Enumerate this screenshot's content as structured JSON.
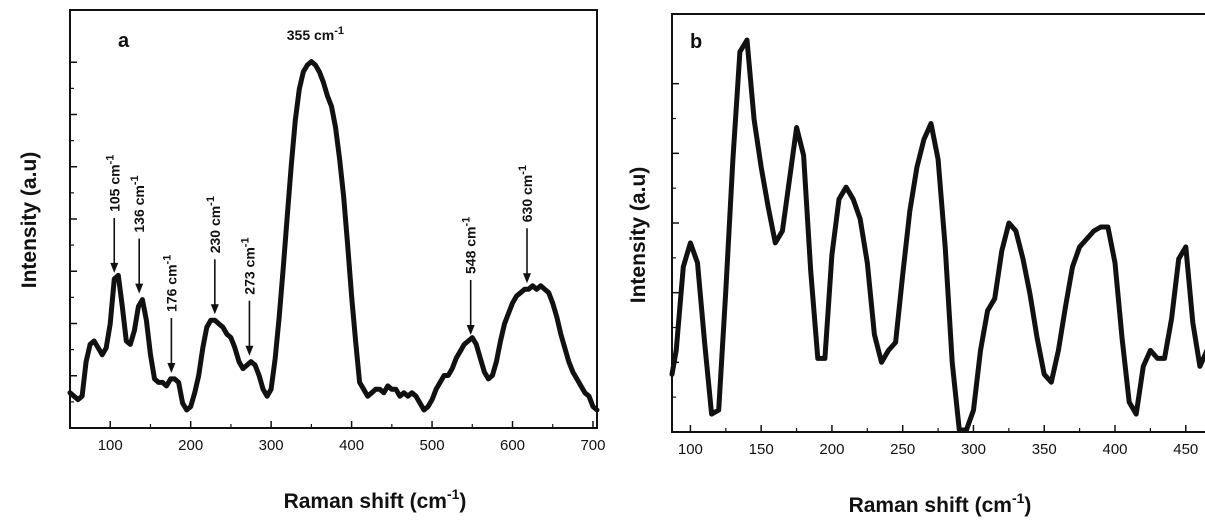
{
  "colors": {
    "line": "#111111",
    "background": "#ffffff"
  },
  "chart_data": [
    {
      "type": "line",
      "panel_label": "a",
      "xlabel": "Raman shift (cm",
      "xlabel_sup": "-1",
      "xlabel_close": ")",
      "ylabel": "Intensity (a.u)",
      "xlim": [
        50,
        705
      ],
      "ylim": [
        0,
        1
      ],
      "xticks": [
        100,
        200,
        300,
        400,
        500,
        600,
        700
      ],
      "yticks_count": 7,
      "grid": false,
      "series": [
        {
          "x": [
            50,
            55,
            60,
            65,
            70,
            75,
            80,
            85,
            90,
            95,
            100,
            105,
            110,
            115,
            120,
            125,
            130,
            135,
            140,
            145,
            150,
            155,
            160,
            165,
            170,
            175,
            180,
            185,
            190,
            195,
            200,
            205,
            210,
            215,
            220,
            225,
            230,
            235,
            240,
            245,
            250,
            255,
            260,
            265,
            270,
            275,
            280,
            285,
            290,
            295,
            300,
            305,
            310,
            315,
            320,
            325,
            330,
            335,
            340,
            345,
            350,
            355,
            360,
            365,
            370,
            375,
            380,
            385,
            390,
            395,
            400,
            405,
            410,
            415,
            420,
            425,
            430,
            435,
            440,
            445,
            450,
            455,
            460,
            465,
            470,
            475,
            480,
            485,
            490,
            495,
            500,
            505,
            510,
            515,
            520,
            525,
            530,
            535,
            540,
            545,
            550,
            555,
            560,
            565,
            570,
            575,
            580,
            585,
            590,
            595,
            600,
            605,
            610,
            615,
            620,
            625,
            630,
            635,
            640,
            645,
            650,
            655,
            660,
            665,
            670,
            675,
            680,
            685,
            690,
            695,
            700,
            705
          ],
          "y": [
            0.05,
            0.04,
            0.03,
            0.04,
            0.14,
            0.19,
            0.2,
            0.18,
            0.16,
            0.18,
            0.25,
            0.38,
            0.39,
            0.3,
            0.2,
            0.19,
            0.23,
            0.3,
            0.32,
            0.26,
            0.16,
            0.09,
            0.08,
            0.08,
            0.07,
            0.09,
            0.09,
            0.08,
            0.02,
            0.0,
            0.01,
            0.05,
            0.1,
            0.18,
            0.24,
            0.26,
            0.26,
            0.25,
            0.24,
            0.22,
            0.21,
            0.18,
            0.14,
            0.12,
            0.13,
            0.14,
            0.13,
            0.1,
            0.06,
            0.04,
            0.06,
            0.15,
            0.27,
            0.41,
            0.56,
            0.71,
            0.84,
            0.93,
            0.98,
            1.0,
            1.01,
            1.0,
            0.98,
            0.95,
            0.91,
            0.88,
            0.82,
            0.73,
            0.62,
            0.48,
            0.33,
            0.2,
            0.08,
            0.06,
            0.04,
            0.05,
            0.06,
            0.06,
            0.05,
            0.07,
            0.06,
            0.06,
            0.04,
            0.05,
            0.04,
            0.05,
            0.04,
            0.02,
            0.0,
            0.01,
            0.03,
            0.06,
            0.08,
            0.1,
            0.1,
            0.12,
            0.15,
            0.17,
            0.19,
            0.2,
            0.21,
            0.19,
            0.15,
            0.11,
            0.09,
            0.1,
            0.14,
            0.2,
            0.25,
            0.28,
            0.31,
            0.33,
            0.34,
            0.35,
            0.35,
            0.36,
            0.35,
            0.36,
            0.35,
            0.34,
            0.31,
            0.27,
            0.22,
            0.18,
            0.14,
            0.11,
            0.09,
            0.07,
            0.05,
            0.04,
            0.01,
            0.0
          ]
        }
      ],
      "annotations": [
        {
          "text": "355 cm",
          "sup": "-1",
          "x": 355,
          "position": "top"
        },
        {
          "text": "105 cm",
          "sup": "-1",
          "x": 105,
          "y": 0.38
        },
        {
          "text": "136 cm",
          "sup": "-1",
          "x": 136,
          "y": 0.32
        },
        {
          "text": "176 cm",
          "sup": "-1",
          "x": 176,
          "y": 0.09
        },
        {
          "text": "230 cm",
          "sup": "-1",
          "x": 230,
          "y": 0.26
        },
        {
          "text": "273 cm",
          "sup": "-1",
          "x": 273,
          "y": 0.14
        },
        {
          "text": "548 cm",
          "sup": "-1",
          "x": 548,
          "y": 0.2
        },
        {
          "text": "630 cm",
          "sup": "-1",
          "x": 618,
          "y": 0.35
        }
      ]
    },
    {
      "type": "line",
      "panel_label": "b",
      "xlabel": "Raman shift (cm",
      "xlabel_sup": "-1",
      "xlabel_close": ")",
      "ylabel": "Intensity (a.u)",
      "xlim": [
        87,
        465
      ],
      "ylim": [
        0,
        1
      ],
      "xticks": [
        100,
        150,
        200,
        250,
        300,
        350,
        400,
        450
      ],
      "yticks_count": 5,
      "grid": false,
      "series": [
        {
          "x": [
            87,
            90,
            95,
            100,
            105,
            110,
            115,
            120,
            125,
            130,
            135,
            140,
            145,
            150,
            155,
            160,
            165,
            170,
            175,
            180,
            185,
            190,
            195,
            200,
            205,
            210,
            215,
            220,
            225,
            230,
            235,
            240,
            245,
            250,
            255,
            260,
            265,
            270,
            275,
            280,
            285,
            290,
            295,
            300,
            305,
            310,
            315,
            320,
            325,
            330,
            335,
            340,
            345,
            350,
            355,
            360,
            365,
            370,
            375,
            380,
            385,
            390,
            395,
            400,
            405,
            410,
            415,
            420,
            425,
            430,
            435,
            440,
            445,
            450,
            455,
            460,
            465
          ],
          "y": [
            0.14,
            0.2,
            0.41,
            0.47,
            0.42,
            0.22,
            0.04,
            0.05,
            0.35,
            0.68,
            0.95,
            0.98,
            0.78,
            0.66,
            0.56,
            0.47,
            0.5,
            0.63,
            0.76,
            0.69,
            0.4,
            0.18,
            0.18,
            0.44,
            0.58,
            0.61,
            0.58,
            0.53,
            0.42,
            0.24,
            0.17,
            0.2,
            0.22,
            0.39,
            0.55,
            0.66,
            0.73,
            0.77,
            0.68,
            0.46,
            0.17,
            0.0,
            0.0,
            0.05,
            0.2,
            0.3,
            0.33,
            0.45,
            0.52,
            0.5,
            0.43,
            0.34,
            0.23,
            0.14,
            0.12,
            0.2,
            0.31,
            0.41,
            0.46,
            0.48,
            0.5,
            0.51,
            0.51,
            0.42,
            0.23,
            0.07,
            0.04,
            0.16,
            0.2,
            0.18,
            0.18,
            0.28,
            0.43,
            0.46,
            0.27,
            0.16,
            0.2
          ]
        }
      ]
    }
  ]
}
